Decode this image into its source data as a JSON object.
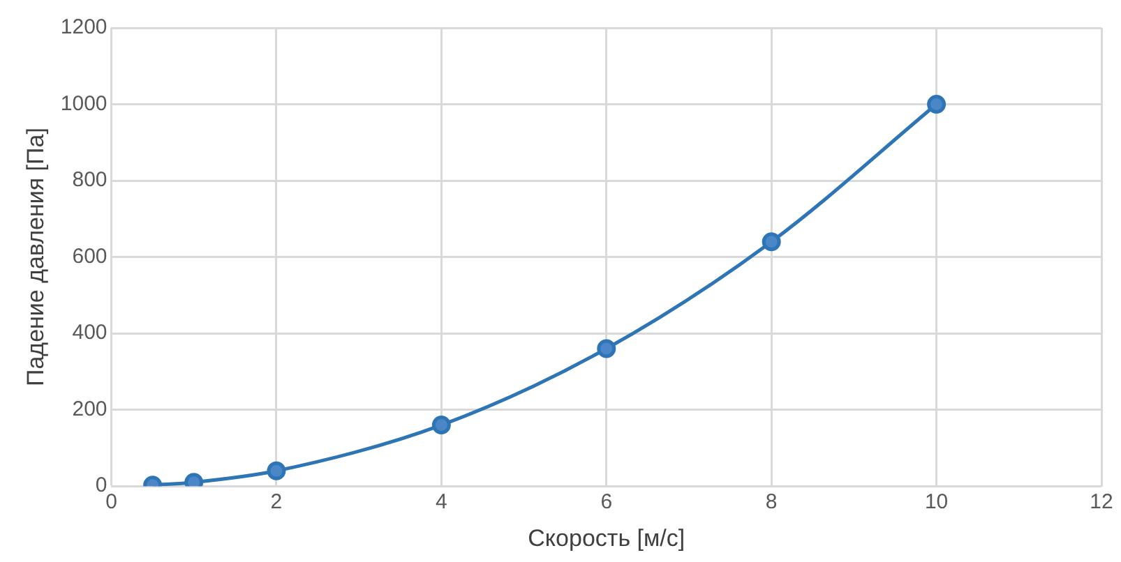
{
  "chart_data": {
    "type": "line",
    "xlabel": "Скорость [м/с]",
    "ylabel": "Падение давления [Па]",
    "series": [
      {
        "color": "#2e75b6",
        "x": [
          0.5,
          1,
          2,
          4,
          6,
          8,
          10
        ],
        "values": [
          2.5,
          10,
          40,
          160,
          360,
          640,
          1000
        ]
      }
    ],
    "xlim": [
      0,
      12
    ],
    "xticks": [
      0,
      2,
      4,
      6,
      8,
      10,
      12
    ],
    "ylim": [
      0,
      1200
    ],
    "yticks": [
      0,
      200,
      400,
      600,
      800,
      1000,
      1200
    ],
    "grid": true,
    "legend": false,
    "marker": "circle",
    "line_style": "solid"
  }
}
